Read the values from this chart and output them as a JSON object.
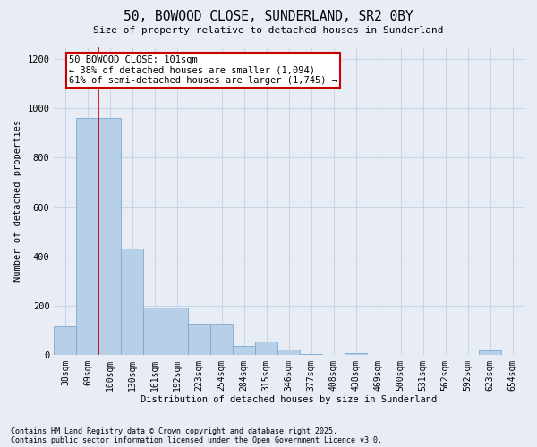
{
  "title_line1": "50, BOWOOD CLOSE, SUNDERLAND, SR2 0BY",
  "title_line2": "Size of property relative to detached houses in Sunderland",
  "xlabel": "Distribution of detached houses by size in Sunderland",
  "ylabel": "Number of detached properties",
  "categories": [
    "38sqm",
    "69sqm",
    "100sqm",
    "130sqm",
    "161sqm",
    "192sqm",
    "223sqm",
    "254sqm",
    "284sqm",
    "315sqm",
    "346sqm",
    "377sqm",
    "408sqm",
    "438sqm",
    "469sqm",
    "500sqm",
    "531sqm",
    "562sqm",
    "592sqm",
    "623sqm",
    "654sqm"
  ],
  "bar_data": [
    115,
    960,
    960,
    430,
    190,
    190,
    125,
    125,
    35,
    55,
    20,
    3,
    0,
    5,
    0,
    0,
    0,
    0,
    0,
    18,
    0
  ],
  "bar_color": "#b8cfe8",
  "bar_edge_color": "#7aaad0",
  "grid_color": "#c8d4e8",
  "bg_color": "#e8edf5",
  "vline_x": 1.5,
  "vline_color": "#cc0000",
  "annotation_text": "50 BOWOOD CLOSE: 101sqm\n← 38% of detached houses are smaller (1,094)\n61% of semi-detached houses are larger (1,745) →",
  "annot_box_color": "#cc0000",
  "ylim": [
    0,
    1250
  ],
  "yticks": [
    0,
    200,
    400,
    600,
    800,
    1000,
    1200
  ],
  "footnote1": "Contains HM Land Registry data © Crown copyright and database right 2025.",
  "footnote2": "Contains public sector information licensed under the Open Government Licence v3.0."
}
